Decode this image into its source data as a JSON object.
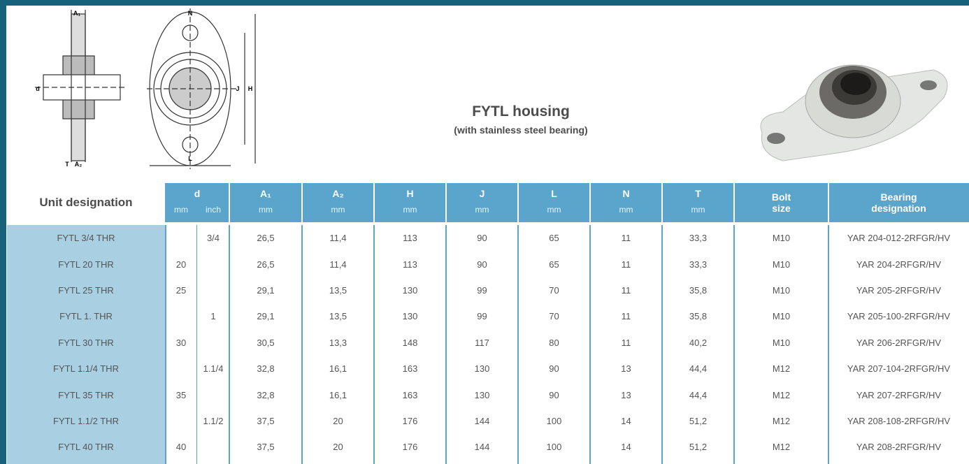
{
  "header": {
    "title": "FYTL housing",
    "subtitle": "(with stainless steel bearing)"
  },
  "drawing_labels": [
    "A₁",
    "N",
    "d",
    "J",
    "H",
    "L",
    "A₂",
    "T"
  ],
  "table": {
    "columns": [
      {
        "label": "Unit designation"
      },
      {
        "label": "d",
        "units": [
          "mm",
          "inch"
        ]
      },
      {
        "label": "A₁",
        "units": [
          "mm"
        ]
      },
      {
        "label": "A₂",
        "units": [
          "mm"
        ]
      },
      {
        "label": "H",
        "units": [
          "mm"
        ]
      },
      {
        "label": "J",
        "units": [
          "mm"
        ]
      },
      {
        "label": "L",
        "units": [
          "mm"
        ]
      },
      {
        "label": "N",
        "units": [
          "mm"
        ]
      },
      {
        "label": "T",
        "units": [
          "mm"
        ]
      },
      {
        "label": "Bolt size"
      },
      {
        "label": "Bearing designation"
      }
    ],
    "rows": [
      [
        "FYTL 3/4 THR",
        null,
        "3/4",
        "26,5",
        "11,4",
        "113",
        "90",
        "65",
        "11",
        "33,3",
        "M10",
        "YAR 204-012-2RFGR/HV"
      ],
      [
        "FYTL 20 THR",
        "20",
        null,
        "26,5",
        "11,4",
        "113",
        "90",
        "65",
        "11",
        "33,3",
        "M10",
        "YAR 204-2RFGR/HV"
      ],
      [
        "FYTL 25 THR",
        "25",
        null,
        "29,1",
        "13,5",
        "130",
        "99",
        "70",
        "11",
        "35,8",
        "M10",
        "YAR 205-2RFGR/HV"
      ],
      [
        "FYTL 1. THR",
        null,
        "1",
        "29,1",
        "13,5",
        "130",
        "99",
        "70",
        "11",
        "35,8",
        "M10",
        "YAR 205-100-2RFGR/HV"
      ],
      [
        "FYTL 30 THR",
        "30",
        null,
        "30,5",
        "13,3",
        "148",
        "117",
        "80",
        "11",
        "40,2",
        "M10",
        "YAR 206-2RFGR/HV"
      ],
      [
        "FYTL 1.1/4 THR",
        null,
        "1.1/4",
        "32,8",
        "16,1",
        "163",
        "130",
        "90",
        "13",
        "44,4",
        "M12",
        "YAR 207-104-2RFGR/HV"
      ],
      [
        "FYTL 35 THR",
        "35",
        null,
        "32,8",
        "16,1",
        "163",
        "130",
        "90",
        "13",
        "44,4",
        "M12",
        "YAR 207-2RFGR/HV"
      ],
      [
        "FYTL 1.1/2 THR",
        null,
        "1.1/2",
        "37,5",
        "20",
        "176",
        "144",
        "100",
        "14",
        "51,2",
        "M12",
        "YAR 208-108-2RFGR/HV"
      ],
      [
        "FYTL 40 THR",
        "40",
        null,
        "37,5",
        "20",
        "176",
        "144",
        "100",
        "14",
        "51,2",
        "M12",
        "YAR 208-2RFGR/HV"
      ]
    ]
  }
}
